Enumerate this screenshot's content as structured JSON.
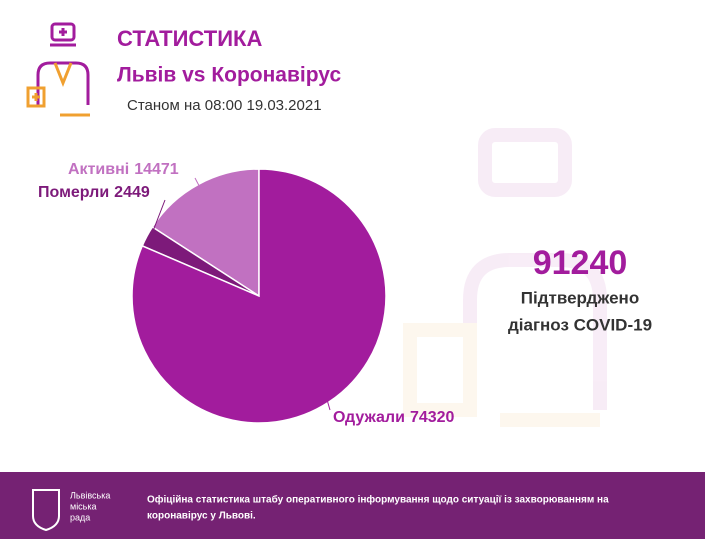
{
  "header": {
    "title": "СТАТИСТИКА",
    "subtitle": "Львів vs Коронавірус",
    "date": "Станом на 08:00 19.03.2021"
  },
  "chart_data": {
    "type": "pie",
    "categories": [
      "Активні",
      "Померли",
      "Одужали"
    ],
    "values": [
      14471,
      2449,
      74320
    ],
    "colors": [
      "#c171c1",
      "#7d1a7a",
      "#a21c9d"
    ]
  },
  "summary": {
    "total": 91240,
    "caption_line1": "Підтверджено",
    "caption_line2": "діагноз COVID-19"
  },
  "footer": {
    "logo_text": [
      "Львівська",
      "міська",
      "рада"
    ],
    "text_line1": "Офіційна статистика штабу оперативного інформування щодо ситуації із захворюванням на",
    "text_line2": "коронавірус у Львові."
  }
}
